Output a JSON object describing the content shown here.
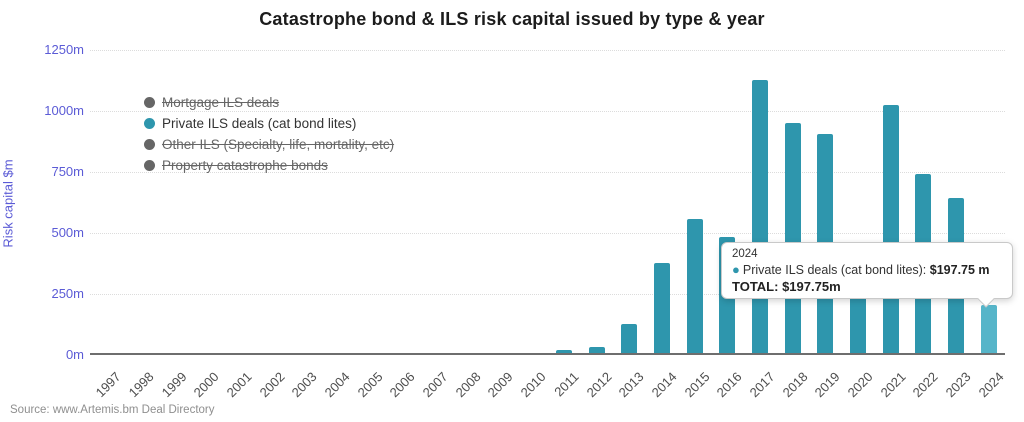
{
  "title": "Catastrophe bond & ILS risk capital issued by type & year",
  "y_axis": {
    "label": "Risk capital $m",
    "ticks": [
      "1250m",
      "1000m",
      "750m",
      "500m",
      "250m",
      "0m"
    ]
  },
  "legend": {
    "items": [
      {
        "label": "Mortgage ILS deals",
        "color": "#666666",
        "disabled": true
      },
      {
        "label": "Private ILS deals (cat bond lites)",
        "color": "#2e96ad",
        "disabled": false
      },
      {
        "label": "Other ILS (Specialty, life, mortality, etc)",
        "color": "#666666",
        "disabled": true
      },
      {
        "label": "Property catastrophe bonds",
        "color": "#666666",
        "disabled": true
      }
    ]
  },
  "tooltip": {
    "year": "2024",
    "bullet": "●",
    "series_label": "Private ILS deals (cat bond lites): ",
    "series_value": "$197.75 m",
    "total_label": "TOTAL: ",
    "total_value": "$197.75m"
  },
  "source": "Source: www.Artemis.bm Deal Directory",
  "colors": {
    "bar": "#2e96ad",
    "bar_highlight": "#56b5c9",
    "axis_label": "#5b5bd6"
  },
  "chart_data": {
    "type": "bar",
    "title": "Catastrophe bond & ILS risk capital issued by type & year",
    "xlabel": "",
    "ylabel": "Risk capital $m",
    "ylim": [
      0,
      1250
    ],
    "grid": "horizontal-dotted",
    "legend_position": "top-left",
    "categories": [
      "1997",
      "1998",
      "1999",
      "2000",
      "2001",
      "2002",
      "2003",
      "2004",
      "2005",
      "2006",
      "2007",
      "2008",
      "2009",
      "2010",
      "2011",
      "2012",
      "2013",
      "2014",
      "2015",
      "2016",
      "2017",
      "2018",
      "2019",
      "2020",
      "2021",
      "2022",
      "2023",
      "2024"
    ],
    "series": [
      {
        "name": "Private ILS deals (cat bond lites)",
        "values": [
          0,
          0,
          0,
          0,
          0,
          0,
          0,
          0,
          0,
          0,
          0,
          0,
          0,
          0,
          12,
          25,
          117,
          368,
          550,
          475,
          1118,
          942,
          898,
          310,
          1015,
          735,
          635,
          197.75
        ]
      }
    ],
    "highlighted_category": "2024"
  }
}
